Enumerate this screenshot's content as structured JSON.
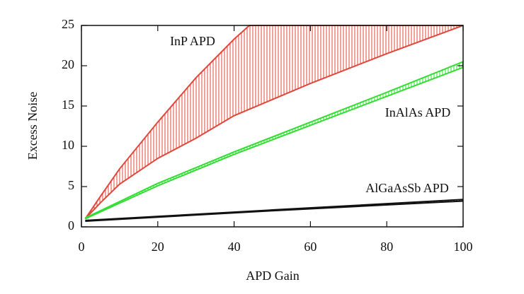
{
  "chart_data": {
    "type": "band",
    "xlabel": "APD Gain",
    "ylabel": "Excess Noise",
    "xlim": [
      0,
      100
    ],
    "xticks": [
      0,
      20,
      40,
      60,
      80,
      100
    ],
    "ylim": [
      0,
      25
    ],
    "yticks": [
      0,
      5,
      10,
      15,
      20,
      25
    ],
    "series": [
      {
        "name": "InP APD",
        "color": "#e0483c",
        "x": [
          1,
          5,
          10,
          20,
          30,
          40,
          44,
          60,
          80,
          100
        ],
        "lower": [
          1,
          3.0,
          5.3,
          8.5,
          11,
          13.8,
          14.6,
          17.8,
          21.5,
          25
        ],
        "upper": [
          1,
          3.8,
          7.2,
          13,
          18.5,
          23.3,
          25,
          25,
          25,
          25
        ]
      },
      {
        "name": "InAlAs APD",
        "color": "#33dd33",
        "x": [
          1,
          20,
          40,
          60,
          80,
          100
        ],
        "lower": [
          1,
          5.1,
          9,
          12.6,
          16.2,
          19.8
        ],
        "upper": [
          1.1,
          5.4,
          9.3,
          13,
          16.7,
          20.5
        ]
      },
      {
        "name": "AlGaAsSb APD",
        "color": "#111111",
        "x": [
          1,
          50,
          100
        ],
        "lower": [
          0.7,
          2.0,
          3.2
        ],
        "upper": [
          0.8,
          2.1,
          3.4
        ]
      }
    ]
  }
}
